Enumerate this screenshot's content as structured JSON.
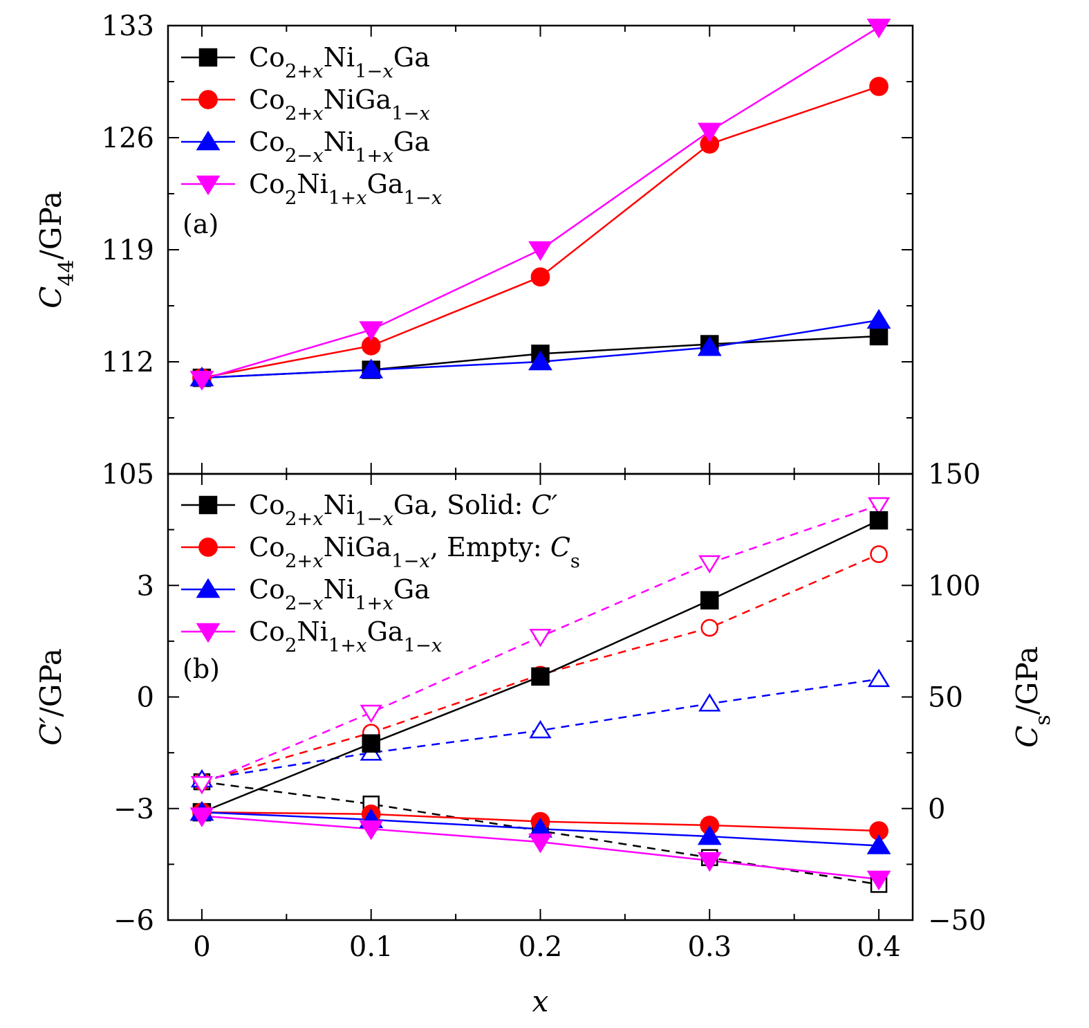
{
  "chart_data": [
    {
      "panel": "a",
      "type": "line",
      "panel_label": "(a)",
      "x_axis": {
        "label": "x",
        "ticks": [
          "0",
          "0.1",
          "0.2",
          "0.3",
          "0.4"
        ],
        "range": [
          -0.02,
          0.42
        ]
      },
      "y_axis": {
        "label_main": "C",
        "label_sub": "44",
        "label_unit": "/GPa",
        "range": [
          105,
          133
        ],
        "ticks": [
          105,
          112,
          119,
          126,
          133
        ]
      },
      "x": [
        0,
        0.1,
        0.2,
        0.3,
        0.4
      ],
      "series": [
        {
          "name_parts": [
            "Co",
            "2+x",
            "Ni",
            "1−x",
            "Ga"
          ],
          "color": "#000000",
          "marker": "square",
          "values": [
            111.0,
            111.5,
            112.5,
            113.1,
            113.6
          ]
        },
        {
          "name_parts": [
            "Co",
            "2+x",
            "NiGa",
            "1−x"
          ],
          "color": "#ff0000",
          "marker": "circle",
          "values": [
            111.0,
            113.0,
            117.3,
            125.6,
            129.2
          ]
        },
        {
          "name_parts": [
            "Co",
            "2−x",
            "Ni",
            "1+x",
            "Ga"
          ],
          "color": "#0000ff",
          "marker": "triangle-up",
          "values": [
            111.0,
            111.5,
            112.0,
            112.9,
            114.6
          ]
        },
        {
          "name_parts": [
            "Co",
            "2",
            "Ni",
            "1+x",
            "Ga",
            "1−x"
          ],
          "color": "#ff00ff",
          "marker": "triangle-down",
          "values": [
            110.9,
            114.0,
            119.0,
            126.4,
            132.9
          ]
        }
      ],
      "legend_placement": "top-left",
      "grid": false
    },
    {
      "panel": "b",
      "type": "line",
      "panel_label": "(b)",
      "x_axis": {
        "label": "x",
        "ticks": [
          "0",
          "0.1",
          "0.2",
          "0.3",
          "0.4"
        ],
        "range": [
          -0.02,
          0.42
        ]
      },
      "y_axis_left": {
        "label_main": "C′",
        "label_unit": "/GPa",
        "range": [
          -6,
          6
        ],
        "ticks": [
          -6,
          -3,
          0,
          3
        ],
        "tick_labels": [
          "−6",
          "−3",
          "0",
          "3"
        ]
      },
      "y_axis_right": {
        "label_main": "C",
        "label_sub": "s",
        "label_unit": "/GPa",
        "range": [
          -50,
          150
        ],
        "ticks": [
          -50,
          0,
          50,
          100,
          150
        ],
        "tick_labels": [
          "−50",
          "0",
          "50",
          "100",
          "150"
        ]
      },
      "x": [
        0,
        0.1,
        0.2,
        0.3,
        0.4
      ],
      "legend_extra": [
        "Solid: ",
        "Empty: "
      ],
      "legend_extra_symbols": [
        {
          "main": "C′"
        },
        {
          "main": "C",
          "sub": "s"
        }
      ],
      "series_solid": [
        {
          "name_parts": [
            "Co",
            "2+x",
            "Ni",
            "1−x",
            "Ga"
          ],
          "color": "#000000",
          "marker": "square",
          "axis": "left",
          "values": [
            -3.1,
            -1.25,
            0.55,
            2.6,
            4.75
          ]
        },
        {
          "name_parts": [
            "Co",
            "2+x",
            "NiGa",
            "1−x"
          ],
          "color": "#ff0000",
          "marker": "circle",
          "axis": "left",
          "values": [
            -3.1,
            -3.15,
            -3.35,
            -3.45,
            -3.6
          ]
        },
        {
          "name_parts": [
            "Co",
            "2−x",
            "Ni",
            "1+x",
            "Ga"
          ],
          "color": "#0000ff",
          "marker": "triangle-up",
          "axis": "left",
          "values": [
            -3.1,
            -3.3,
            -3.55,
            -3.75,
            -4.0
          ]
        },
        {
          "name_parts": [
            "Co",
            "2",
            "Ni",
            "1+x",
            "Ga",
            "1−x"
          ],
          "color": "#ff00ff",
          "marker": "triangle-down",
          "axis": "left",
          "values": [
            -3.2,
            -3.55,
            -3.9,
            -4.4,
            -4.9
          ]
        }
      ],
      "series_empty": [
        {
          "color": "#000000",
          "marker": "square",
          "axis": "right",
          "values": [
            12,
            2,
            -10,
            -22,
            -34
          ]
        },
        {
          "color": "#ff0000",
          "marker": "circle",
          "axis": "right",
          "values": [
            12,
            34,
            60,
            81,
            114
          ]
        },
        {
          "color": "#0000ff",
          "marker": "triangle-up",
          "axis": "right",
          "values": [
            13,
            25,
            35,
            47,
            58
          ]
        },
        {
          "color": "#ff00ff",
          "marker": "triangle-down",
          "axis": "right",
          "values": [
            11,
            43,
            77,
            110,
            136
          ]
        }
      ],
      "legend_placement": "top-left",
      "grid": false
    }
  ]
}
